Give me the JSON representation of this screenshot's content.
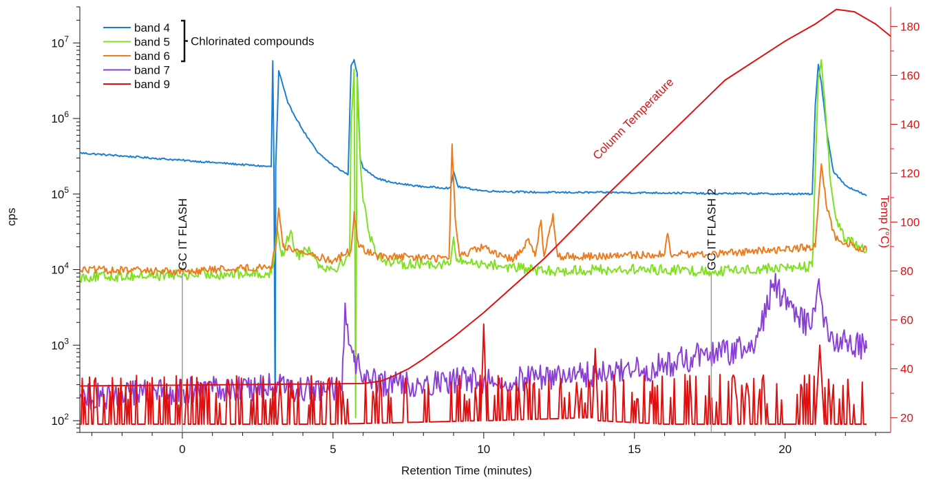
{
  "chart_data": {
    "type": "line",
    "xlabel": "Retention Time (minutes)",
    "ylabel": "cps",
    "y2label": "Temp (°C)",
    "xlim": [
      -3.4,
      23.5
    ],
    "ylim_log": [
      70,
      30000000
    ],
    "y_scale": "log",
    "y2lim": [
      14,
      188
    ],
    "x_ticks": [
      0,
      5,
      10,
      15,
      20
    ],
    "x_tick_labels": [
      "0",
      "5",
      "10",
      "15",
      "20"
    ],
    "y_tick_labels": [
      {
        "base": "10",
        "exp": "2",
        "value": 100
      },
      {
        "base": "10",
        "exp": "3",
        "value": 1000
      },
      {
        "base": "10",
        "exp": "4",
        "value": 10000
      },
      {
        "base": "10",
        "exp": "5",
        "value": 100000
      },
      {
        "base": "10",
        "exp": "6",
        "value": 1000000
      },
      {
        "base": "10",
        "exp": "7",
        "value": 10000000
      }
    ],
    "y2_ticks": [
      20,
      40,
      60,
      80,
      100,
      120,
      140,
      160,
      180
    ],
    "y2_tick_labels": [
      "20",
      "40",
      "60",
      "80",
      "100",
      "120",
      "140",
      "160",
      "180"
    ],
    "legend": {
      "position": "top-left",
      "entries": [
        {
          "label": "band 4",
          "color": "#1a7fd4"
        },
        {
          "label": "band 5",
          "color": "#7fe01f"
        },
        {
          "label": "band 6",
          "color": "#ee7a1c"
        },
        {
          "label": "band 7",
          "color": "#8a3fd6"
        },
        {
          "label": "band 9",
          "color": "#e01010"
        }
      ],
      "bracket_label": "Chlorinated compounds"
    },
    "annotations": [
      {
        "text": "GC IT FLASH",
        "x": 0,
        "y": 9000
      },
      {
        "text": "GC IT FLASH 2",
        "x": 17.55,
        "y": 9000
      }
    ],
    "temperature_label": "Column Temperature",
    "series": [
      {
        "name": "band 4",
        "color": "#1a7fd4",
        "points": [
          [
            -3.4,
            350000
          ],
          [
            0,
            280000
          ],
          [
            2.95,
            230000
          ],
          [
            3.0,
            5800000
          ],
          [
            3.04,
            230000
          ],
          [
            3.08,
            110
          ],
          [
            3.1,
            230000
          ],
          [
            3.2,
            4300000
          ],
          [
            3.5,
            1600000
          ],
          [
            4.0,
            700000
          ],
          [
            4.5,
            350000
          ],
          [
            5.0,
            240000
          ],
          [
            5.5,
            180000
          ],
          [
            5.6,
            5000000
          ],
          [
            5.7,
            6000000
          ],
          [
            5.8,
            4000000
          ],
          [
            5.9,
            300000
          ],
          [
            6.0,
            220000
          ],
          [
            6.5,
            160000
          ],
          [
            7.0,
            140000
          ],
          [
            8.0,
            125000
          ],
          [
            8.9,
            120000
          ],
          [
            9.0,
            200000
          ],
          [
            9.15,
            125000
          ],
          [
            10.0,
            110000
          ],
          [
            12.0,
            105000
          ],
          [
            14.0,
            105000
          ],
          [
            17.0,
            103000
          ],
          [
            17.6,
            100000
          ],
          [
            17.9,
            102000
          ],
          [
            20.9,
            100000
          ],
          [
            21.0,
            1500000
          ],
          [
            21.1,
            5200000
          ],
          [
            21.2,
            3000000
          ],
          [
            21.4,
            600000
          ],
          [
            21.6,
            200000
          ],
          [
            22.0,
            130000
          ],
          [
            22.7,
            95000
          ]
        ]
      },
      {
        "name": "band 5",
        "color": "#7fe01f",
        "points": [
          [
            -3.4,
            8000
          ],
          [
            0,
            8500
          ],
          [
            2.95,
            9000
          ],
          [
            3.05,
            15000
          ],
          [
            3.15,
            37000
          ],
          [
            3.3,
            15000
          ],
          [
            3.6,
            33000
          ],
          [
            3.8,
            15000
          ],
          [
            4.2,
            20000
          ],
          [
            4.5,
            12000
          ],
          [
            5.0,
            10000
          ],
          [
            5.55,
            15000
          ],
          [
            5.6,
            900000
          ],
          [
            5.7,
            4500000
          ],
          [
            5.75,
            110
          ],
          [
            5.8,
            3500000
          ],
          [
            5.9,
            300000
          ],
          [
            6.0,
            80000
          ],
          [
            6.2,
            30000
          ],
          [
            6.5,
            15000
          ],
          [
            7.0,
            12000
          ],
          [
            8.9,
            12000
          ],
          [
            9.0,
            27000
          ],
          [
            9.1,
            13000
          ],
          [
            10.0,
            12000
          ],
          [
            12.0,
            9500
          ],
          [
            14.0,
            10000
          ],
          [
            16.0,
            10000
          ],
          [
            17.5,
            9500
          ],
          [
            20.9,
            11000
          ],
          [
            21.0,
            200000
          ],
          [
            21.1,
            3500000
          ],
          [
            21.2,
            6000000
          ],
          [
            21.3,
            2000000
          ],
          [
            21.5,
            150000
          ],
          [
            21.7,
            45000
          ],
          [
            22.0,
            25000
          ],
          [
            22.7,
            18000
          ]
        ]
      },
      {
        "name": "band 6",
        "color": "#ee7a1c",
        "points": [
          [
            -3.4,
            10000
          ],
          [
            0,
            9500
          ],
          [
            2.95,
            11000
          ],
          [
            3.1,
            20000
          ],
          [
            3.2,
            65000
          ],
          [
            3.35,
            20000
          ],
          [
            4.0,
            17000
          ],
          [
            5.0,
            13000
          ],
          [
            5.6,
            18000
          ],
          [
            5.7,
            58000
          ],
          [
            5.85,
            20000
          ],
          [
            6.5,
            15000
          ],
          [
            8.85,
            14000
          ],
          [
            8.95,
            460000
          ],
          [
            9.05,
            50000
          ],
          [
            9.2,
            15000
          ],
          [
            10.0,
            20000
          ],
          [
            10.5,
            15000
          ],
          [
            11.0,
            14000
          ],
          [
            11.5,
            25000
          ],
          [
            11.7,
            15000
          ],
          [
            11.9,
            45000
          ],
          [
            12.0,
            15000
          ],
          [
            12.3,
            55000
          ],
          [
            12.45,
            15000
          ],
          [
            14.0,
            15000
          ],
          [
            16.0,
            16000
          ],
          [
            16.1,
            30000
          ],
          [
            16.2,
            16000
          ],
          [
            17.5,
            16000
          ],
          [
            21.0,
            20000
          ],
          [
            21.2,
            250000
          ],
          [
            21.4,
            60000
          ],
          [
            21.7,
            25000
          ],
          [
            22.7,
            18000
          ]
        ]
      },
      {
        "name": "band 7",
        "color": "#8a3fd6",
        "points": [
          [
            -3.4,
            200
          ],
          [
            0,
            250
          ],
          [
            3.0,
            280
          ],
          [
            5.3,
            250
          ],
          [
            5.4,
            3600
          ],
          [
            5.55,
            1000
          ],
          [
            5.7,
            600
          ],
          [
            6.5,
            300
          ],
          [
            10.0,
            350
          ],
          [
            12.0,
            380
          ],
          [
            14.0,
            420
          ],
          [
            15.0,
            450
          ],
          [
            16.0,
            550
          ],
          [
            17.0,
            700
          ],
          [
            18.0,
            800
          ],
          [
            19.0,
            950
          ],
          [
            19.3,
            2500
          ],
          [
            19.6,
            6500
          ],
          [
            19.9,
            4500
          ],
          [
            20.3,
            2500
          ],
          [
            20.8,
            1800
          ],
          [
            21.0,
            2800
          ],
          [
            21.1,
            6800
          ],
          [
            21.25,
            2500
          ],
          [
            21.5,
            1300
          ],
          [
            22.0,
            1100
          ],
          [
            22.7,
            900
          ]
        ]
      },
      {
        "name": "band 9",
        "color": "#e01010",
        "points": [
          [
            -3.4,
            90
          ],
          [
            5.0,
            90
          ],
          [
            9.9,
            100
          ],
          [
            10.0,
            1900
          ],
          [
            10.1,
            100
          ],
          [
            13.6,
            110
          ],
          [
            13.7,
            900
          ],
          [
            13.8,
            100
          ],
          [
            16.0,
            90
          ],
          [
            21.0,
            90
          ],
          [
            21.15,
            1000
          ],
          [
            21.3,
            90
          ],
          [
            22.7,
            90
          ]
        ]
      }
    ],
    "temperature_series": {
      "name": "Column Temperature",
      "color": "#e01010",
      "points": [
        [
          -3.4,
          33
        ],
        [
          6.0,
          34
        ],
        [
          6.6,
          35
        ],
        [
          7.0,
          37
        ],
        [
          7.5,
          40
        ],
        [
          8.0,
          44
        ],
        [
          9.0,
          53
        ],
        [
          10.0,
          63
        ],
        [
          12.0,
          85
        ],
        [
          14.0,
          110
        ],
        [
          16.0,
          134
        ],
        [
          18.0,
          158
        ],
        [
          20.0,
          174
        ],
        [
          21.0,
          181
        ],
        [
          21.7,
          187
        ],
        [
          22.3,
          186
        ],
        [
          23.0,
          181
        ],
        [
          23.5,
          176
        ]
      ]
    }
  }
}
